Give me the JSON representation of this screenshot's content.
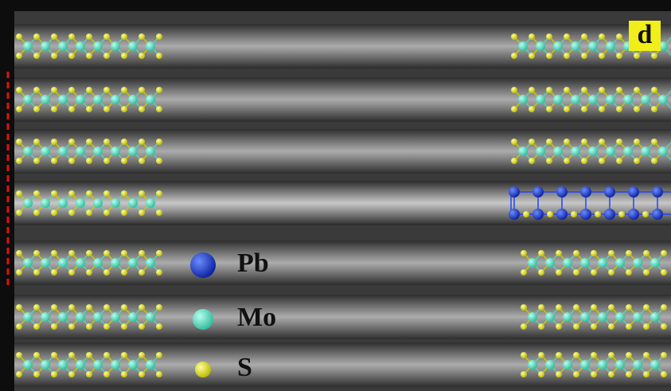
{
  "panel_label": "d",
  "legend": [
    {
      "label": "Pb"
    },
    {
      "label": "Mo"
    },
    {
      "label": "S"
    }
  ]
}
